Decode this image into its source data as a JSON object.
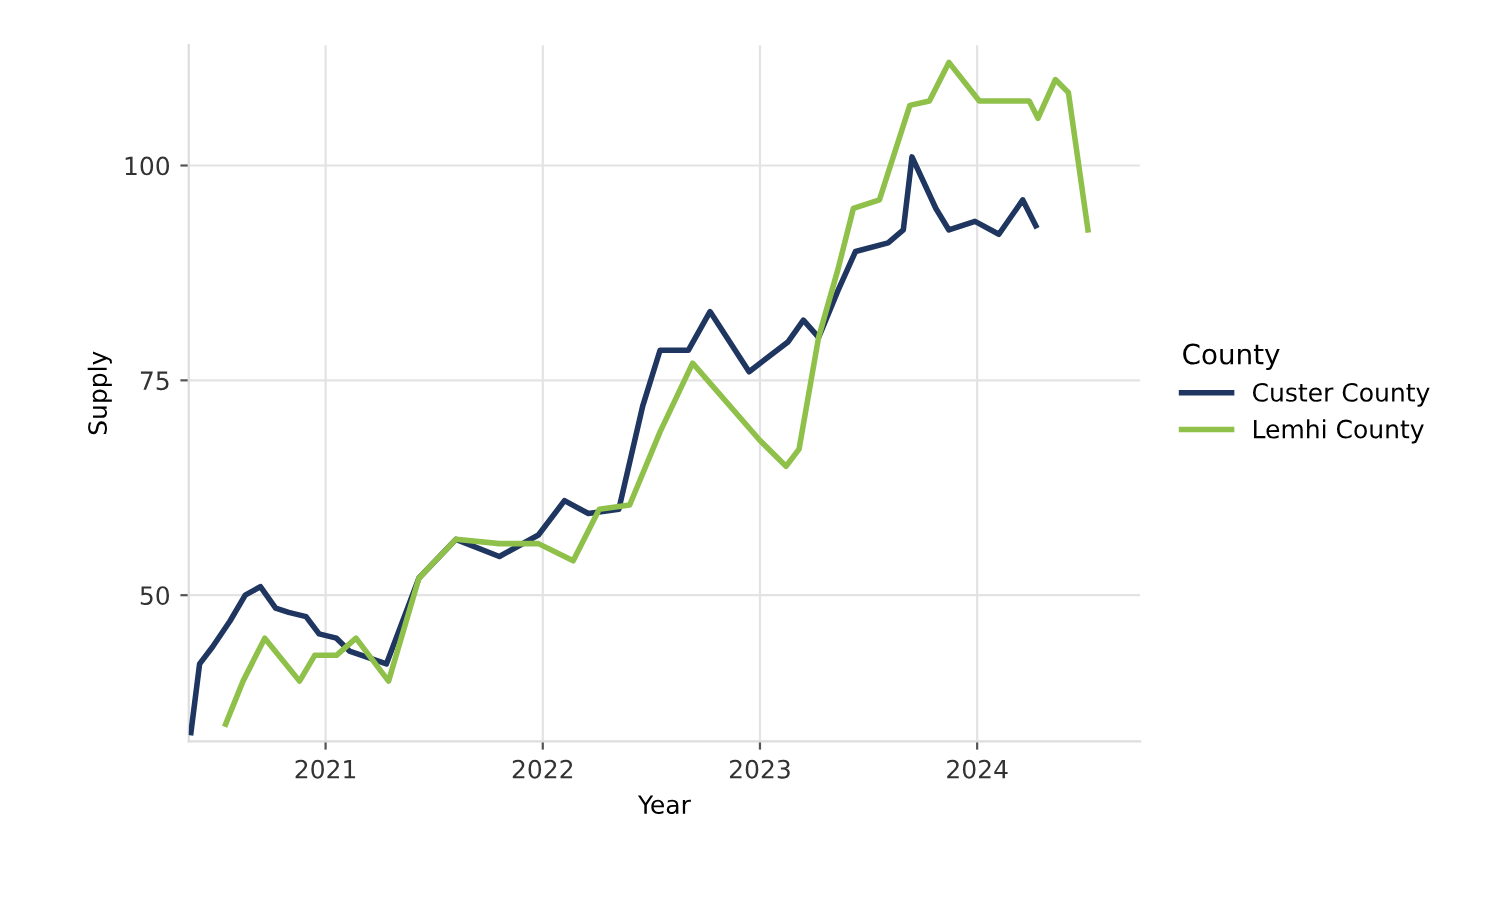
{
  "chart_data": {
    "type": "line",
    "xlabel": "Year",
    "ylabel": "Supply",
    "legend_title": "County",
    "xlim": [
      2020.37,
      2024.75
    ],
    "ylim": [
      33,
      114
    ],
    "xticks": [
      {
        "value": 2021,
        "label": "2021"
      },
      {
        "value": 2022,
        "label": "2022"
      },
      {
        "value": 2023,
        "label": "2023"
      },
      {
        "value": 2024,
        "label": "2024"
      }
    ],
    "yticks": [
      50,
      75,
      100
    ],
    "grid": true,
    "legend": "right",
    "line_style": "solid",
    "marker": "none",
    "series": [
      {
        "name": "Custer County",
        "color": "#1f3660",
        "x": [
          2020.38,
          2020.42,
          2020.48,
          2020.56,
          2020.63,
          2020.7,
          2020.77,
          2020.83,
          2020.91,
          2020.97,
          2021.05,
          2021.11,
          2021.28,
          2021.43,
          2021.6,
          2021.8,
          2021.98,
          2022.1,
          2022.21,
          2022.35,
          2022.46,
          2022.54,
          2022.67,
          2022.77,
          2022.95,
          2023.13,
          2023.2,
          2023.27,
          2023.36,
          2023.44,
          2023.59,
          2023.66,
          2023.7,
          2023.81,
          2023.87,
          2023.99,
          2024.1,
          2024.21,
          2024.27
        ],
        "values": [
          34,
          42,
          44,
          47,
          50,
          51,
          48.5,
          48,
          47.5,
          45.5,
          45,
          43.5,
          42,
          52,
          56.5,
          54.5,
          57,
          61,
          59.5,
          60,
          72,
          78.5,
          78.5,
          83,
          76,
          79.5,
          82,
          80,
          85.5,
          90,
          91,
          92.5,
          101,
          95,
          92.5,
          93.5,
          92,
          96,
          93
        ]
      },
      {
        "name": "Lemhi County",
        "color": "#8fc04a",
        "x": [
          2020.54,
          2020.62,
          2020.72,
          2020.88,
          2020.95,
          2021.05,
          2021.14,
          2021.29,
          2021.43,
          2021.6,
          2021.8,
          2021.98,
          2022.14,
          2022.26,
          2022.4,
          2022.54,
          2022.69,
          2023.0,
          2023.12,
          2023.18,
          2023.27,
          2023.36,
          2023.43,
          2023.55,
          2023.69,
          2023.78,
          2023.87,
          2024.01,
          2024.24,
          2024.28,
          2024.36,
          2024.42,
          2024.51
        ],
        "values": [
          35,
          40,
          45,
          40,
          43,
          43,
          45,
          40,
          52,
          56.5,
          56,
          56,
          54,
          60,
          60.5,
          69,
          77,
          68,
          65,
          67,
          80,
          88,
          95,
          96,
          107,
          107.5,
          112,
          107.5,
          107.5,
          105.5,
          110,
          108.5,
          92.5
        ]
      }
    ]
  }
}
